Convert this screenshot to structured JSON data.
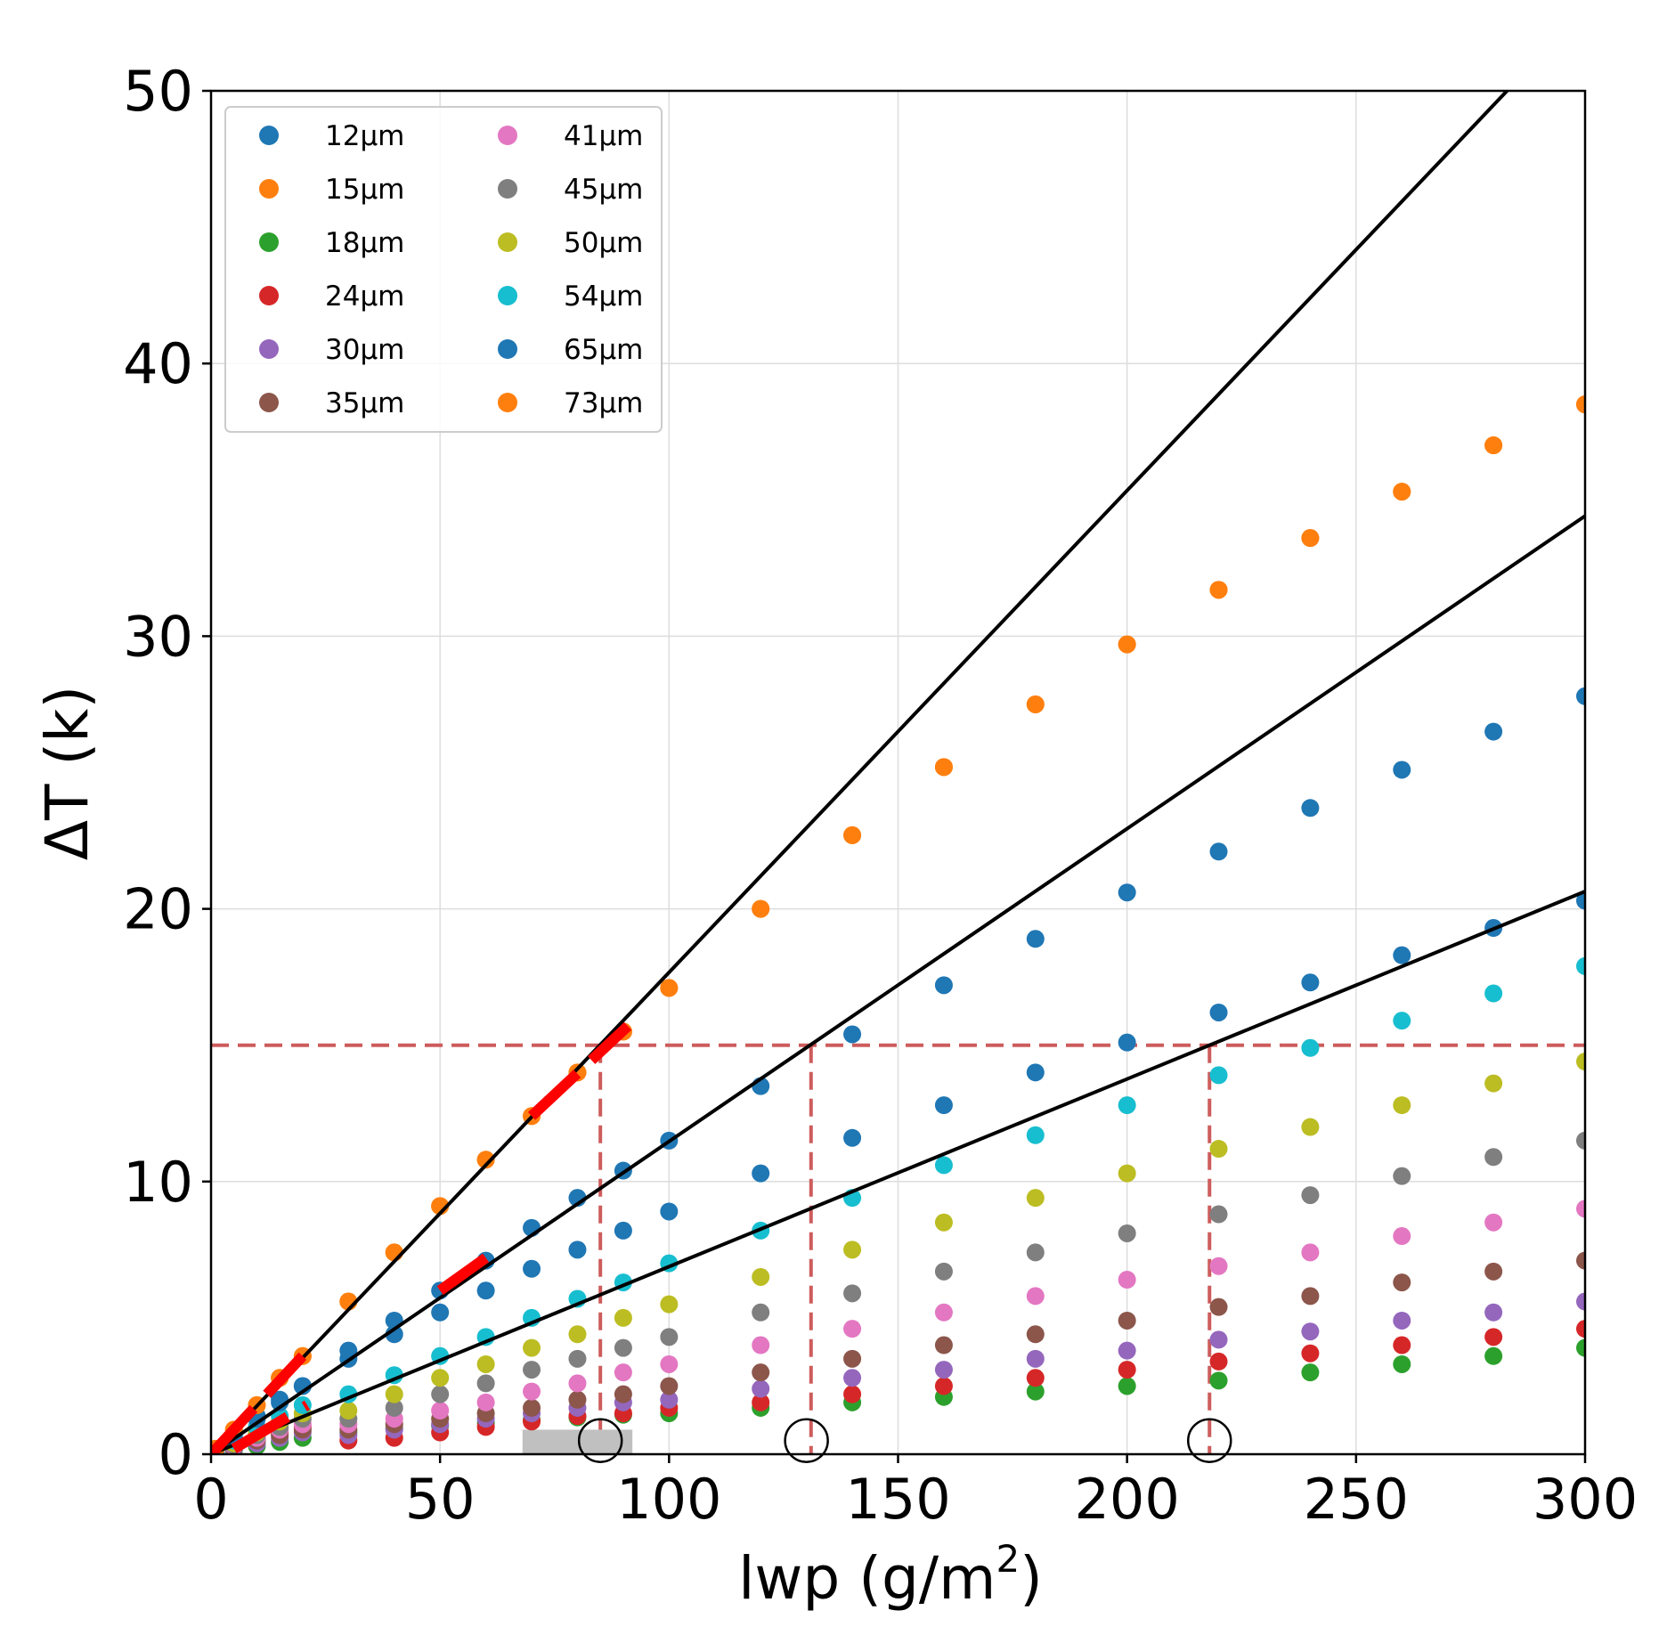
{
  "chart_data": {
    "type": "scatter",
    "title": "",
    "xlabel": "lwp (g/m",
    "xlabel_sup": "2",
    "xlabel_close": ")",
    "ylabel": "ΔT (k)",
    "xlim": [
      0,
      300
    ],
    "ylim": [
      0,
      50
    ],
    "xticks": [
      "0",
      "50",
      "100",
      "150",
      "200",
      "250",
      "300"
    ],
    "yticks": [
      "0",
      "10",
      "20",
      "30",
      "40",
      "50"
    ],
    "grid": true,
    "legend_position": "top-left",
    "legend_columns": 2,
    "x": [
      1,
      5,
      10,
      15,
      20,
      30,
      40,
      50,
      60,
      70,
      80,
      90,
      100,
      120,
      140,
      160,
      180,
      200,
      220,
      240,
      260,
      280,
      300
    ],
    "series": [
      {
        "name": "12μm",
        "color": "#1f77b4",
        "values": [
          0.1,
          0.6,
          1.3,
          1.9,
          2.5,
          3.5,
          4.4,
          5.2,
          6.0,
          6.8,
          7.5,
          8.2,
          8.9,
          10.3,
          11.6,
          12.8,
          14.0,
          15.1,
          16.2,
          17.3,
          18.3,
          19.3,
          20.3
        ]
      },
      {
        "name": "15μm",
        "color": "#ff7f0e",
        "values": [
          0.2,
          0.9,
          1.8,
          2.8,
          3.6,
          5.6,
          7.4,
          9.1,
          10.8,
          12.4,
          14.0,
          15.5,
          17.1,
          20.0,
          22.7,
          25.2,
          27.5,
          29.7,
          31.7,
          33.6,
          35.3,
          37.0,
          38.5
        ]
      },
      {
        "name": "18μm",
        "color": "#2ca02c",
        "values": [
          0.03,
          0.15,
          0.3,
          0.45,
          0.6,
          0.8,
          0.95,
          1.05,
          1.15,
          1.25,
          1.35,
          1.45,
          1.5,
          1.7,
          1.9,
          2.1,
          2.3,
          2.5,
          2.7,
          3.0,
          3.3,
          3.6,
          3.9
        ]
      },
      {
        "name": "24μm",
        "color": "#d62728",
        "values": [
          0.05,
          0.3,
          0.55,
          0.8,
          1.0,
          0.5,
          0.6,
          0.8,
          1.0,
          1.2,
          1.4,
          1.5,
          1.7,
          1.9,
          2.2,
          2.5,
          2.8,
          3.1,
          3.4,
          3.7,
          4.0,
          4.3,
          4.6
        ]
      },
      {
        "name": "30μm",
        "color": "#9467bd",
        "values": [
          0.04,
          0.2,
          0.4,
          0.6,
          0.8,
          0.7,
          0.9,
          1.1,
          1.3,
          1.5,
          1.7,
          1.9,
          2.0,
          2.4,
          2.8,
          3.1,
          3.5,
          3.8,
          4.2,
          4.5,
          4.9,
          5.2,
          5.6
        ]
      },
      {
        "name": "35μm",
        "color": "#8c564b",
        "values": [
          0.05,
          0.25,
          0.5,
          0.7,
          0.9,
          0.9,
          1.1,
          1.3,
          1.5,
          1.7,
          2.0,
          2.2,
          2.5,
          3.0,
          3.5,
          4.0,
          4.4,
          4.9,
          5.4,
          5.8,
          6.3,
          6.7,
          7.1
        ]
      },
      {
        "name": "41μm",
        "color": "#e377c2",
        "values": [
          0.06,
          0.3,
          0.6,
          0.9,
          1.1,
          1.1,
          1.3,
          1.6,
          1.9,
          2.3,
          2.6,
          3.0,
          3.3,
          4.0,
          4.6,
          5.2,
          5.8,
          6.4,
          6.9,
          7.4,
          8.0,
          8.5,
          9.0
        ]
      },
      {
        "name": "45μm",
        "color": "#7f7f7f",
        "values": [
          0.07,
          0.35,
          0.7,
          1.0,
          1.3,
          1.3,
          1.7,
          2.2,
          2.6,
          3.1,
          3.5,
          3.9,
          4.3,
          5.2,
          5.9,
          6.7,
          7.4,
          8.1,
          8.8,
          9.5,
          10.2,
          10.9,
          11.5
        ]
      },
      {
        "name": "50μm",
        "color": "#bcbd22",
        "values": [
          0.08,
          0.4,
          0.8,
          1.2,
          1.5,
          1.6,
          2.2,
          2.8,
          3.3,
          3.9,
          4.4,
          5.0,
          5.5,
          6.5,
          7.5,
          8.5,
          9.4,
          10.3,
          11.2,
          12.0,
          12.8,
          13.6,
          14.4
        ]
      },
      {
        "name": "54μm",
        "color": "#17becf",
        "values": [
          0.1,
          0.5,
          1.0,
          1.4,
          1.8,
          2.2,
          2.9,
          3.6,
          4.3,
          5.0,
          5.7,
          6.3,
          7.0,
          8.2,
          9.4,
          10.6,
          11.7,
          12.8,
          13.9,
          14.9,
          15.9,
          16.9,
          17.9
        ]
      },
      {
        "name": "65μm",
        "color": "#1f77b4",
        "values": [
          0.15,
          0.7,
          1.4,
          2.0,
          2.5,
          3.8,
          4.9,
          6.0,
          7.1,
          8.3,
          9.4,
          10.4,
          11.5,
          13.5,
          15.4,
          17.2,
          18.9,
          20.6,
          22.1,
          23.7,
          25.1,
          26.5,
          27.8
        ]
      },
      {
        "name": "73μm",
        "color": "#ff7f0e",
        "values": [
          0.2,
          0.9,
          1.8,
          2.8,
          3.6,
          5.6,
          7.4,
          9.1,
          10.8,
          12.4,
          14.0,
          15.5,
          17.1,
          20.0,
          22.7,
          25.2,
          27.5,
          29.7,
          31.7,
          33.6,
          35.3,
          37.0,
          38.5
        ]
      }
    ],
    "fit_lines": [
      {
        "color": "#000000",
        "slope": 0.1767
      },
      {
        "color": "#000000",
        "slope": 0.1147
      },
      {
        "color": "#000000",
        "slope": 0.0688
      }
    ],
    "threshold": {
      "y": 15,
      "color": "#cd5c5c",
      "x_intercepts": [
        85,
        131,
        218
      ]
    },
    "red_segments": [
      {
        "color": "#ff0000",
        "x": [
          0,
          20
        ],
        "y": [
          0,
          3.6
        ]
      },
      {
        "color": "#ff0000",
        "x": [
          5,
          21
        ],
        "y": [
          0.2,
          1.8
        ]
      },
      {
        "color": "#ff0000",
        "x": [
          50,
          60
        ],
        "y": [
          6.0,
          7.2
        ]
      },
      {
        "color": "#ff0000",
        "x": [
          70,
          91
        ],
        "y": [
          12.4,
          15.7
        ]
      }
    ],
    "gray_bar": {
      "color": "#c0c0c0",
      "x": [
        68,
        92
      ],
      "y": [
        0,
        0.9
      ]
    },
    "markers": [
      {
        "x": 85,
        "y": 0.5
      },
      {
        "x": 130,
        "y": 0.5
      },
      {
        "x": 218,
        "y": 0.5
      }
    ]
  }
}
